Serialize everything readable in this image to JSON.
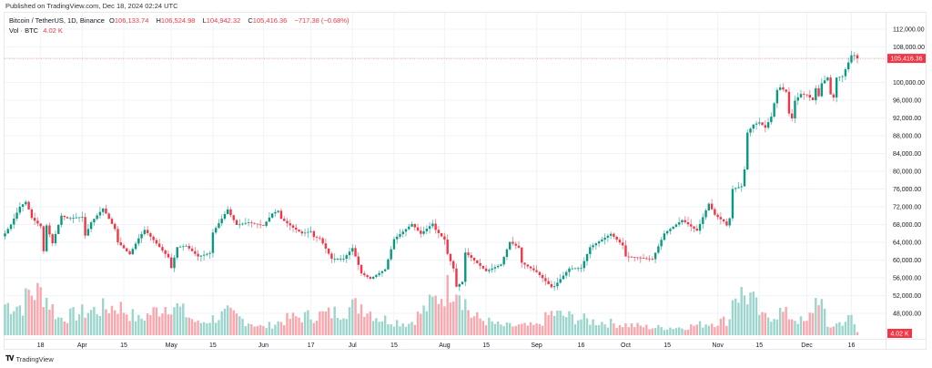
{
  "published": "Published on TradingView.com, Dec 18, 2024 02:24 UTC",
  "legend": {
    "symbol": "Bitcoin / TetherUS, 1D, Binance",
    "o_label": "O",
    "o": "106,133.74",
    "h_label": "H",
    "h": "106,524.98",
    "l_label": "L",
    "l": "104,942.32",
    "c_label": "C",
    "c": "105,416.36",
    "change": "−717.38 (−0.68%)",
    "vol_label": "Vol · BTC",
    "vol": "4.02 K"
  },
  "footer": {
    "brand": "TradingView",
    "logo_text": "TV"
  },
  "colors": {
    "up": "#089981",
    "down": "#f23645",
    "up_vol": "#9bd5cc",
    "down_vol": "#f9a7ad",
    "grid": "#f0f3fa"
  },
  "chart_data": {
    "type": "candlestick",
    "title": "Bitcoin / TetherUS, 1D, Binance",
    "start_date": "2024-03-06",
    "end_date": "2024-12-18",
    "ylim": [
      42000,
      114000
    ],
    "yticks": [
      112000,
      108000,
      100000,
      96000,
      92000,
      88000,
      84000,
      80000,
      76000,
      72000,
      68000,
      64000,
      60000,
      56000,
      52000,
      48000
    ],
    "ytick_labels": [
      "112,000.00",
      "108,000.00",
      "100,000.00",
      "96,000.00",
      "92,000.00",
      "88,000.00",
      "84,000.00",
      "80,000.00",
      "76,000.00",
      "72,000.00",
      "68,000.00",
      "64,000.00",
      "60,000.00",
      "56,000.00",
      "52,000.00",
      "48,000.00"
    ],
    "xticks": [
      {
        "date": "2024-03-18",
        "label": "18"
      },
      {
        "date": "2024-04-01",
        "label": "Apr"
      },
      {
        "date": "2024-04-15",
        "label": "15"
      },
      {
        "date": "2024-05-01",
        "label": "May"
      },
      {
        "date": "2024-05-15",
        "label": "15"
      },
      {
        "date": "2024-06-01",
        "label": "Jun"
      },
      {
        "date": "2024-06-17",
        "label": "17"
      },
      {
        "date": "2024-07-01",
        "label": "Jul"
      },
      {
        "date": "2024-07-15",
        "label": "15"
      },
      {
        "date": "2024-08-01",
        "label": "Aug"
      },
      {
        "date": "2024-08-15",
        "label": "15"
      },
      {
        "date": "2024-09-01",
        "label": "Sep"
      },
      {
        "date": "2024-09-16",
        "label": "16"
      },
      {
        "date": "2024-10-01",
        "label": "Oct"
      },
      {
        "date": "2024-10-15",
        "label": "15"
      },
      {
        "date": "2024-11-01",
        "label": "Nov"
      },
      {
        "date": "2024-11-15",
        "label": "15"
      },
      {
        "date": "2024-12-01",
        "label": "Dec"
      },
      {
        "date": "2024-12-16",
        "label": "16"
      }
    ],
    "close_keypoints": [
      [
        "2024-03-06",
        66000
      ],
      [
        "2024-03-08",
        68000
      ],
      [
        "2024-03-11",
        72000
      ],
      [
        "2024-03-13",
        73100
      ],
      [
        "2024-03-14",
        71400
      ],
      [
        "2024-03-15",
        69500
      ],
      [
        "2024-03-18",
        67600
      ],
      [
        "2024-03-19",
        62000
      ],
      [
        "2024-03-20",
        67800
      ],
      [
        "2024-03-22",
        63800
      ],
      [
        "2024-03-25",
        70000
      ],
      [
        "2024-03-27",
        69400
      ],
      [
        "2024-04-01",
        69700
      ],
      [
        "2024-04-02",
        65500
      ],
      [
        "2024-04-04",
        68500
      ],
      [
        "2024-04-08",
        71600
      ],
      [
        "2024-04-12",
        67000
      ],
      [
        "2024-04-13",
        64000
      ],
      [
        "2024-04-17",
        61300
      ],
      [
        "2024-04-20",
        64900
      ],
      [
        "2024-04-22",
        66800
      ],
      [
        "2024-04-25",
        64500
      ],
      [
        "2024-04-30",
        60600
      ],
      [
        "2024-05-01",
        58200
      ],
      [
        "2024-05-03",
        62900
      ],
      [
        "2024-05-06",
        63200
      ],
      [
        "2024-05-10",
        60800
      ],
      [
        "2024-05-14",
        61600
      ],
      [
        "2024-05-15",
        66200
      ],
      [
        "2024-05-20",
        71400
      ],
      [
        "2024-05-21",
        70100
      ],
      [
        "2024-05-23",
        67900
      ],
      [
        "2024-05-27",
        68500
      ],
      [
        "2024-06-01",
        67700
      ],
      [
        "2024-06-04",
        70500
      ],
      [
        "2024-06-06",
        71100
      ],
      [
        "2024-06-07",
        69300
      ],
      [
        "2024-06-11",
        67300
      ],
      [
        "2024-06-14",
        66000
      ],
      [
        "2024-06-17",
        66500
      ],
      [
        "2024-06-18",
        65200
      ],
      [
        "2024-06-20",
        64900
      ],
      [
        "2024-06-24",
        60300
      ],
      [
        "2024-06-28",
        60300
      ],
      [
        "2024-07-01",
        62700
      ],
      [
        "2024-07-04",
        57000
      ],
      [
        "2024-07-05",
        56600
      ],
      [
        "2024-07-07",
        55800
      ],
      [
        "2024-07-12",
        57900
      ],
      [
        "2024-07-15",
        64700
      ],
      [
        "2024-07-21",
        68100
      ],
      [
        "2024-07-24",
        65900
      ],
      [
        "2024-07-28",
        68200
      ],
      [
        "2024-07-29",
        66800
      ],
      [
        "2024-08-01",
        64600
      ],
      [
        "2024-08-02",
        61400
      ],
      [
        "2024-08-04",
        58100
      ],
      [
        "2024-08-05",
        54000
      ],
      [
        "2024-08-07",
        55100
      ],
      [
        "2024-08-08",
        61700
      ],
      [
        "2024-08-15",
        57500
      ],
      [
        "2024-08-20",
        59000
      ],
      [
        "2024-08-23",
        64100
      ],
      [
        "2024-08-26",
        62800
      ],
      [
        "2024-08-27",
        59400
      ],
      [
        "2024-09-01",
        57300
      ],
      [
        "2024-09-06",
        53900
      ],
      [
        "2024-09-07",
        54100
      ],
      [
        "2024-09-12",
        58100
      ],
      [
        "2024-09-16",
        58200
      ],
      [
        "2024-09-19",
        62900
      ],
      [
        "2024-09-26",
        65900
      ],
      [
        "2024-09-30",
        63300
      ],
      [
        "2024-10-01",
        60800
      ],
      [
        "2024-10-03",
        60700
      ],
      [
        "2024-10-10",
        60200
      ],
      [
        "2024-10-14",
        66000
      ],
      [
        "2024-10-20",
        69000
      ],
      [
        "2024-10-25",
        66600
      ],
      [
        "2024-10-29",
        72700
      ],
      [
        "2024-10-31",
        70200
      ],
      [
        "2024-11-03",
        68700
      ],
      [
        "2024-11-04",
        67800
      ],
      [
        "2024-11-05",
        69400
      ],
      [
        "2024-11-06",
        76000
      ],
      [
        "2024-11-09",
        76600
      ],
      [
        "2024-11-10",
        80400
      ],
      [
        "2024-11-11",
        88700
      ],
      [
        "2024-11-13",
        90500
      ],
      [
        "2024-11-15",
        91000
      ],
      [
        "2024-11-17",
        89800
      ],
      [
        "2024-11-19",
        92300
      ],
      [
        "2024-11-21",
        98300
      ],
      [
        "2024-11-22",
        98900
      ],
      [
        "2024-11-24",
        97900
      ],
      [
        "2024-11-25",
        93000
      ],
      [
        "2024-11-26",
        91900
      ],
      [
        "2024-11-27",
        95900
      ],
      [
        "2024-11-29",
        97400
      ],
      [
        "2024-12-01",
        97200
      ],
      [
        "2024-12-03",
        96000
      ],
      [
        "2024-12-04",
        98700
      ],
      [
        "2024-12-05",
        96900
      ],
      [
        "2024-12-06",
        99800
      ],
      [
        "2024-12-08",
        101100
      ],
      [
        "2024-12-09",
        97300
      ],
      [
        "2024-12-10",
        96600
      ],
      [
        "2024-12-11",
        101100
      ],
      [
        "2024-12-13",
        101400
      ],
      [
        "2024-12-15",
        104500
      ],
      [
        "2024-12-16",
        106100
      ],
      [
        "2024-12-17",
        106133.74
      ],
      [
        "2024-12-18",
        105416.36
      ]
    ],
    "volume_keypoints_k": [
      [
        "2024-03-06",
        40
      ],
      [
        "2024-03-12",
        38
      ],
      [
        "2024-03-14",
        55
      ],
      [
        "2024-03-19",
        55
      ],
      [
        "2024-03-24",
        22
      ],
      [
        "2024-04-02",
        30
      ],
      [
        "2024-04-13",
        38
      ],
      [
        "2024-04-20",
        20
      ],
      [
        "2024-05-01",
        42
      ],
      [
        "2024-05-10",
        15
      ],
      [
        "2024-05-20",
        28
      ],
      [
        "2024-06-01",
        10
      ],
      [
        "2024-06-10",
        22
      ],
      [
        "2024-06-24",
        28
      ],
      [
        "2024-07-04",
        40
      ],
      [
        "2024-07-10",
        22
      ],
      [
        "2024-07-20",
        15
      ],
      [
        "2024-08-05",
        70
      ],
      [
        "2024-08-10",
        25
      ],
      [
        "2024-08-20",
        12
      ],
      [
        "2024-09-01",
        12
      ],
      [
        "2024-09-06",
        28
      ],
      [
        "2024-09-20",
        18
      ],
      [
        "2024-10-10",
        10
      ],
      [
        "2024-10-20",
        10
      ],
      [
        "2024-11-05",
        20
      ],
      [
        "2024-11-06",
        55
      ],
      [
        "2024-11-12",
        50
      ],
      [
        "2024-11-16",
        22
      ],
      [
        "2024-11-22",
        30
      ],
      [
        "2024-12-01",
        15
      ],
      [
        "2024-12-05",
        55
      ],
      [
        "2024-12-08",
        10
      ],
      [
        "2024-12-16",
        22
      ],
      [
        "2024-12-17",
        14
      ],
      [
        "2024-12-18",
        4.02
      ]
    ],
    "last_price": 105416.36,
    "last_price_label": "105,416.36",
    "last_volume_label": "4.02 K"
  }
}
